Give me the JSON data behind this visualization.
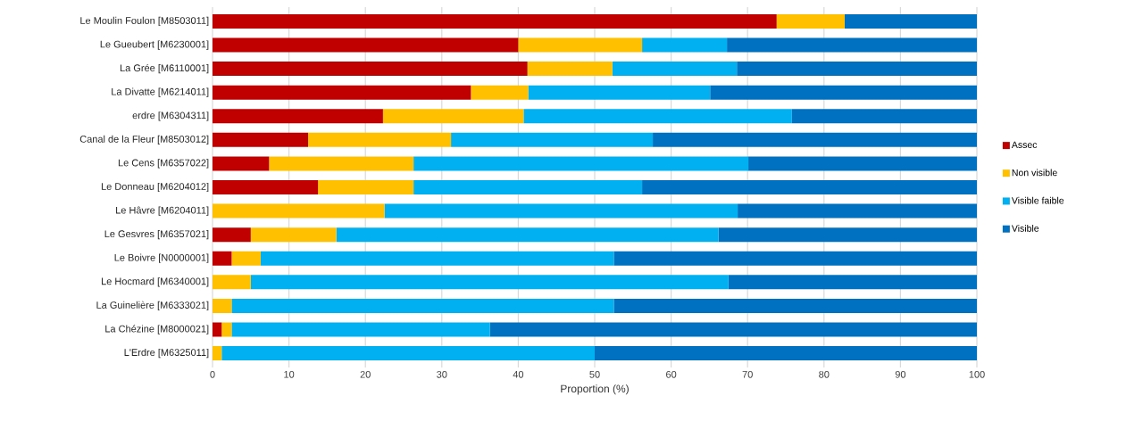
{
  "chart_data": {
    "type": "bar",
    "orientation": "horizontal",
    "stacked": true,
    "xlabel": "Proportion (%)",
    "categories": [
      "Le Moulin Foulon [M8503011]",
      "Le Gueubert [M6230001]",
      "La Grée [M6110001]",
      "La Divatte [M6214011]",
      "erdre [M6304311]",
      "Canal de la Fleur [M8503012]",
      "Le Cens [M6357022]",
      "Le Donneau [M6204012]",
      "Le Hâvre [M6204011]",
      "Le Gesvres [M6357021]",
      "Le Boivre [N0000001]",
      "Le Hocmard [M6340001]",
      "La Guinelière [M6333021]",
      "La Chézine [M8000021]",
      "L'Erdre [M6325011]"
    ],
    "series": [
      {
        "name": "Assec",
        "color": "#c00000",
        "values": [
          73.8,
          40,
          41.2,
          33.8,
          22.3,
          12.5,
          7.4,
          13.8,
          0,
          5,
          2.5,
          0,
          0,
          1.2,
          0
        ]
      },
      {
        "name": "Non visible",
        "color": "#ffc000",
        "values": [
          8.9,
          16.2,
          11.1,
          7.5,
          18.4,
          18.7,
          18.9,
          12.5,
          22.5,
          11.2,
          3.8,
          5,
          2.5,
          1.3,
          1.2
        ]
      },
      {
        "name": "Visible faible",
        "color": "#00b0f0",
        "values": [
          0,
          11.1,
          16.3,
          23.8,
          35.1,
          26.4,
          43.8,
          29.9,
          46.2,
          50,
          46.2,
          62.5,
          50,
          33.8,
          48.8
        ]
      },
      {
        "name": "Visible",
        "color": "#0070c0",
        "values": [
          17.3,
          32.7,
          31.4,
          34.9,
          24.2,
          42.4,
          29.9,
          43.8,
          31.3,
          33.8,
          47.5,
          32.5,
          47.5,
          63.7,
          50
        ]
      }
    ],
    "xlim": [
      0,
      100
    ],
    "xticks": [
      0,
      10,
      20,
      30,
      40,
      50,
      60,
      70,
      80,
      90,
      100
    ],
    "grid": "x",
    "legend": "right"
  }
}
